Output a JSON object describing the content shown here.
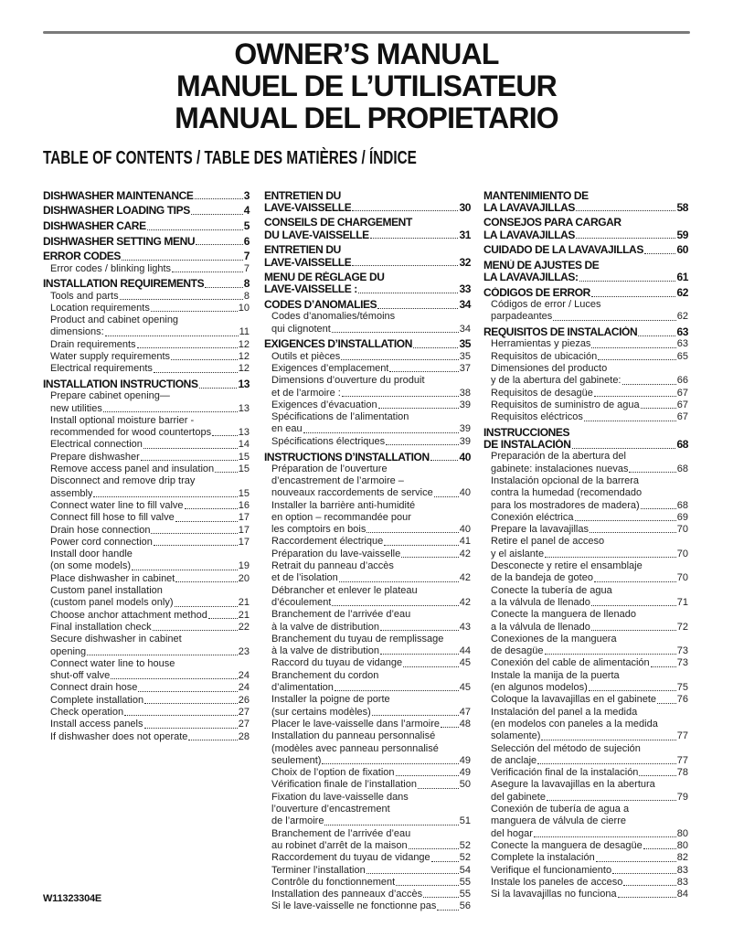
{
  "titles": [
    "OWNER’S MANUAL",
    "MANUEL DE L’UTILISATEUR",
    "MANUAL DEL PROPIETARIO"
  ],
  "toc_heading": "TABLE OF CONTENTS / TABLE DES MATIÈRES / ÍNDICE",
  "footer_code": "W11323304E",
  "columns": [
    {
      "entries": [
        {
          "level": 1,
          "lines": [
            "DISHWASHER MAINTENANCE"
          ],
          "page": "3"
        },
        {
          "level": 1,
          "lines": [
            "DISHWASHER LOADING TIPS"
          ],
          "page": "4"
        },
        {
          "level": 1,
          "lines": [
            "DISHWASHER CARE"
          ],
          "page": "5"
        },
        {
          "level": 1,
          "lines": [
            "DISHWASHER SETTING MENU"
          ],
          "page": "6"
        },
        {
          "level": 1,
          "lines": [
            "ERROR CODES"
          ],
          "page": "7"
        },
        {
          "level": 2,
          "lines": [
            "Error codes / blinking lights"
          ],
          "page": "7"
        },
        {
          "level": 1,
          "lines": [
            "INSTALLATION REQUIREMENTS"
          ],
          "page": "8"
        },
        {
          "level": 2,
          "lines": [
            "Tools and parts"
          ],
          "page": "8"
        },
        {
          "level": 2,
          "lines": [
            "Location requirements"
          ],
          "page": "10"
        },
        {
          "level": 2,
          "lines": [
            "Product and cabinet opening",
            "dimensions:"
          ],
          "page": "11"
        },
        {
          "level": 2,
          "lines": [
            "Drain requirements"
          ],
          "page": "12"
        },
        {
          "level": 2,
          "lines": [
            "Water supply requirements"
          ],
          "page": "12"
        },
        {
          "level": 2,
          "lines": [
            "Electrical requirements"
          ],
          "page": "12"
        },
        {
          "level": 1,
          "lines": [
            "INSTALLATION INSTRUCTIONS"
          ],
          "page": "13"
        },
        {
          "level": 2,
          "lines": [
            "Prepare cabinet opening—",
            "new utilities"
          ],
          "page": "13"
        },
        {
          "level": 2,
          "lines": [
            "Install optional moisture barrier -",
            "recommended for wood countertops"
          ],
          "page": "13"
        },
        {
          "level": 2,
          "lines": [
            "Electrical connection"
          ],
          "page": "14"
        },
        {
          "level": 2,
          "lines": [
            "Prepare dishwasher"
          ],
          "page": "15"
        },
        {
          "level": 2,
          "lines": [
            "Remove access panel and insulation"
          ],
          "page": "15"
        },
        {
          "level": 2,
          "lines": [
            "Disconnect and remove drip tray",
            "assembly"
          ],
          "page": "15"
        },
        {
          "level": 2,
          "lines": [
            "Connect water line to fill valve"
          ],
          "page": "16"
        },
        {
          "level": 2,
          "lines": [
            "Connect fill hose to fill valve"
          ],
          "page": "17"
        },
        {
          "level": 2,
          "lines": [
            "Drain hose connection"
          ],
          "page": "17"
        },
        {
          "level": 2,
          "lines": [
            "Power cord connection"
          ],
          "page": "17"
        },
        {
          "level": 2,
          "lines": [
            "Install door handle",
            "(on some models)"
          ],
          "page": "19"
        },
        {
          "level": 2,
          "lines": [
            "Place dishwasher in cabinet"
          ],
          "page": "20"
        },
        {
          "level": 2,
          "lines": [
            "Custom panel installation",
            "(custom panel models only)"
          ],
          "page": "21"
        },
        {
          "level": 2,
          "lines": [
            "Choose anchor attachment method"
          ],
          "page": "21"
        },
        {
          "level": 2,
          "lines": [
            "Final installation check"
          ],
          "page": "22"
        },
        {
          "level": 2,
          "lines": [
            "Secure dishwasher in cabinet",
            "opening"
          ],
          "page": "23"
        },
        {
          "level": 2,
          "lines": [
            "Connect water line to house",
            "shut-off valve"
          ],
          "page": "24"
        },
        {
          "level": 2,
          "lines": [
            "Connect drain hose"
          ],
          "page": "24"
        },
        {
          "level": 2,
          "lines": [
            "Complete installation"
          ],
          "page": "26"
        },
        {
          "level": 2,
          "lines": [
            "Check operation"
          ],
          "page": "27"
        },
        {
          "level": 2,
          "lines": [
            "Install access panels"
          ],
          "page": "27"
        },
        {
          "level": 2,
          "lines": [
            "If dishwasher does not operate"
          ],
          "page": "28"
        }
      ]
    },
    {
      "entries": [
        {
          "level": 1,
          "lines": [
            "ENTRETIEN DU",
            "LAVE-VAISSELLE"
          ],
          "page": "30"
        },
        {
          "level": 1,
          "lines": [
            "CONSEILS DE CHARGEMENT",
            "DU LAVE-VAISSELLE"
          ],
          "page": "31"
        },
        {
          "level": 1,
          "lines": [
            "ENTRETIEN DU",
            "LAVE-VAISSELLE"
          ],
          "page": "32"
        },
        {
          "level": 1,
          "lines": [
            "MENU DE RÉGLAGE DU",
            "LAVE-VAISSELLE :"
          ],
          "page": "33"
        },
        {
          "level": 1,
          "lines": [
            "CODES D’ANOMALIES"
          ],
          "page": "34"
        },
        {
          "level": 2,
          "lines": [
            "Codes d’anomalies/témoins",
            "qui clignotent"
          ],
          "page": "34"
        },
        {
          "level": 1,
          "lines": [
            "EXIGENCES D’INSTALLATION"
          ],
          "page": "35"
        },
        {
          "level": 2,
          "lines": [
            "Outils et pièces"
          ],
          "page": "35"
        },
        {
          "level": 2,
          "lines": [
            "Exigences d’emplacement"
          ],
          "page": "37"
        },
        {
          "level": 2,
          "lines": [
            "Dimensions d’ouverture du produit",
            "et de l’armoire :"
          ],
          "page": "38"
        },
        {
          "level": 2,
          "lines": [
            "Exigences d’évacuation"
          ],
          "page": "39"
        },
        {
          "level": 2,
          "lines": [
            "Spécifications de l’alimentation",
            "en eau"
          ],
          "page": "39"
        },
        {
          "level": 2,
          "lines": [
            "Spécifications électriques"
          ],
          "page": "39"
        },
        {
          "level": 1,
          "lines": [
            "INSTRUCTIONS D’INSTALLATION"
          ],
          "page": "40"
        },
        {
          "level": 2,
          "lines": [
            "Préparation de l’ouverture",
            "d’encastrement de l’armoire –",
            "nouveaux raccordements de service"
          ],
          "page": "40"
        },
        {
          "level": 2,
          "lines": [
            "Installer la barrière anti-humidité",
            "en option – recommandée pour",
            "les comptoirs en bois"
          ],
          "page": "40"
        },
        {
          "level": 2,
          "lines": [
            "Raccordement électrique"
          ],
          "page": "41"
        },
        {
          "level": 2,
          "lines": [
            "Préparation du lave-vaisselle"
          ],
          "page": "42"
        },
        {
          "level": 2,
          "lines": [
            "Retrait du panneau d’accès",
            "et de l’isolation"
          ],
          "page": "42"
        },
        {
          "level": 2,
          "lines": [
            "Débrancher et enlever le plateau",
            "d’écoulement"
          ],
          "page": "42"
        },
        {
          "level": 2,
          "lines": [
            "Branchement de l’arrivée d’eau",
            "à la valve de distribution"
          ],
          "page": "43"
        },
        {
          "level": 2,
          "lines": [
            "Branchement du tuyau de remplissage",
            "à la valve de distribution"
          ],
          "page": "44"
        },
        {
          "level": 2,
          "lines": [
            "Raccord du tuyau de vidange"
          ],
          "page": "45"
        },
        {
          "level": 2,
          "lines": [
            "Branchement du cordon",
            "d’alimentation"
          ],
          "page": "45"
        },
        {
          "level": 2,
          "lines": [
            "Installer la poigne de porte",
            "(sur certains modèles)"
          ],
          "page": "47"
        },
        {
          "level": 2,
          "lines": [
            "Placer le lave-vaisselle dans l’armoire"
          ],
          "page": "48"
        },
        {
          "level": 2,
          "lines": [
            "Installation du panneau personnalisé",
            "(modèles avec panneau personnalisé",
            "seulement)"
          ],
          "page": "49"
        },
        {
          "level": 2,
          "lines": [
            "Choix de l’option de fixation"
          ],
          "page": "49"
        },
        {
          "level": 2,
          "lines": [
            "Vérification finale de l’installation"
          ],
          "page": "50"
        },
        {
          "level": 2,
          "lines": [
            "Fixation du lave-vaisselle dans",
            "l’ouverture d’encastrement",
            "de l’armoire"
          ],
          "page": "51"
        },
        {
          "level": 2,
          "lines": [
            "Branchement de l’arrivée d’eau",
            "au robinet d’arrêt de la maison"
          ],
          "page": "52"
        },
        {
          "level": 2,
          "lines": [
            "Raccordement du tuyau de vidange"
          ],
          "page": "52"
        },
        {
          "level": 2,
          "lines": [
            "Terminer l’installation"
          ],
          "page": "54"
        },
        {
          "level": 2,
          "lines": [
            "Contrôle du fonctionnement"
          ],
          "page": "55"
        },
        {
          "level": 2,
          "lines": [
            "Installation des panneaux d’accès"
          ],
          "page": "55"
        },
        {
          "level": 2,
          "lines": [
            "Si le lave-vaisselle ne fonctionne pas"
          ],
          "page": "56"
        }
      ]
    },
    {
      "entries": [
        {
          "level": 1,
          "lines": [
            "MANTENIMIENTO DE",
            "LA LAVAVAJILLAS"
          ],
          "page": "58"
        },
        {
          "level": 1,
          "lines": [
            "CONSEJOS PARA CARGAR",
            "LA LAVAVAJILLAS"
          ],
          "page": "59"
        },
        {
          "level": 1,
          "lines": [
            "CUIDADO DE LA LAVAVAJILLAS"
          ],
          "page": "60"
        },
        {
          "level": 1,
          "lines": [
            "MENÚ DE AJUSTES DE",
            "LA LAVAVAJILLAS:"
          ],
          "page": "61"
        },
        {
          "level": 1,
          "lines": [
            "CÓDIGOS DE ERROR"
          ],
          "page": "62"
        },
        {
          "level": 2,
          "lines": [
            "Códigos de error / Luces",
            "parpadeantes"
          ],
          "page": "62"
        },
        {
          "level": 1,
          "lines": [
            "REQUISITOS DE INSTALACIÓN"
          ],
          "page": "63"
        },
        {
          "level": 2,
          "lines": [
            "Herramientas y piezas"
          ],
          "page": "63"
        },
        {
          "level": 2,
          "lines": [
            "Requisitos de ubicación"
          ],
          "page": "65"
        },
        {
          "level": 2,
          "lines": [
            "Dimensiones del producto",
            "y de la abertura del gabinete:"
          ],
          "page": "66"
        },
        {
          "level": 2,
          "lines": [
            "Requisitos de desagüe"
          ],
          "page": "67"
        },
        {
          "level": 2,
          "lines": [
            "Requisitos de suministro de agua"
          ],
          "page": "67"
        },
        {
          "level": 2,
          "lines": [
            "Requisitos eléctricos"
          ],
          "page": "67"
        },
        {
          "level": 1,
          "lines": [
            "INSTRUCCIONES",
            "DE INSTALACIÓN"
          ],
          "page": "68"
        },
        {
          "level": 2,
          "lines": [
            "Preparación de la abertura del",
            "gabinete: instalaciones nuevas"
          ],
          "page": "68"
        },
        {
          "level": 2,
          "lines": [
            "Instalación opcional de la barrera",
            "contra la humedad (recomendado",
            "para los mostradores de madera)"
          ],
          "page": "68"
        },
        {
          "level": 2,
          "lines": [
            "Conexión eléctrica"
          ],
          "page": "69"
        },
        {
          "level": 2,
          "lines": [
            "Prepare la lavavajillas"
          ],
          "page": "70"
        },
        {
          "level": 2,
          "lines": [
            "Retire el panel de acceso",
            "y el aislante"
          ],
          "page": "70"
        },
        {
          "level": 2,
          "lines": [
            "Desconecte y retire el ensamblaje",
            "de la bandeja de goteo"
          ],
          "page": "70"
        },
        {
          "level": 2,
          "lines": [
            "Conecte la tubería de agua",
            "a la válvula de llenado"
          ],
          "page": "71"
        },
        {
          "level": 2,
          "lines": [
            "Conecte la manguera de llenado",
            "a la válvula de llenado"
          ],
          "page": "72"
        },
        {
          "level": 2,
          "lines": [
            "Conexiones de la manguera",
            "de desagüe"
          ],
          "page": "73"
        },
        {
          "level": 2,
          "lines": [
            "Conexión del cable de alimentación"
          ],
          "page": "73"
        },
        {
          "level": 2,
          "lines": [
            "Instale la manija de la puerta",
            "(en algunos modelos)"
          ],
          "page": "75"
        },
        {
          "level": 2,
          "lines": [
            "Coloque la lavavajillas en el gabinete"
          ],
          "page": "76"
        },
        {
          "level": 2,
          "lines": [
            "Instalación del panel a la medida",
            "(en modelos con paneles a la medida",
            "solamente)"
          ],
          "page": "77"
        },
        {
          "level": 2,
          "lines": [
            "Selección del método de sujeción",
            "de anclaje"
          ],
          "page": "77"
        },
        {
          "level": 2,
          "lines": [
            "Verificación final de la instalación"
          ],
          "page": "78"
        },
        {
          "level": 2,
          "lines": [
            "Asegure la lavavajillas en la abertura",
            "del gabinete"
          ],
          "page": "79"
        },
        {
          "level": 2,
          "lines": [
            "Conexión de tubería de agua a",
            "manguera de válvula de cierre",
            "del hogar"
          ],
          "page": "80"
        },
        {
          "level": 2,
          "lines": [
            "Conecte la manguera de desagüe"
          ],
          "page": "80"
        },
        {
          "level": 2,
          "lines": [
            "Complete la instalación"
          ],
          "page": "82"
        },
        {
          "level": 2,
          "lines": [
            "Verifique el funcionamiento"
          ],
          "page": "83"
        },
        {
          "level": 2,
          "lines": [
            "Instale los paneles de acceso"
          ],
          "page": "83"
        },
        {
          "level": 2,
          "lines": [
            "Si la lavavajillas no funciona"
          ],
          "page": "84"
        }
      ]
    }
  ]
}
